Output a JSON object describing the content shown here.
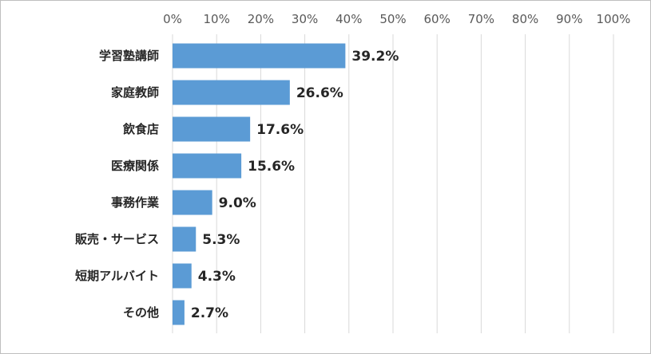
{
  "chart_data": {
    "type": "bar",
    "orientation": "horizontal",
    "categories": [
      "学習塾講師",
      "家庭教師",
      "飲食店",
      "医療関係",
      "事務作業",
      "販売・サービス",
      "短期アルバイト",
      "その他"
    ],
    "values": [
      39.2,
      26.6,
      17.6,
      15.6,
      9.0,
      5.3,
      4.3,
      2.7
    ],
    "value_labels": [
      "39.2%",
      "26.6%",
      "17.6%",
      "15.6%",
      "9.0%",
      "5.3%",
      "4.3%",
      "2.7%"
    ],
    "xlim": [
      0,
      100
    ],
    "xticks": [
      "0%",
      "10%",
      "20%",
      "30%",
      "40%",
      "50%",
      "60%",
      "70%",
      "80%",
      "90%",
      "100%"
    ],
    "x_axis_position": "top",
    "grid": true,
    "bar_color": "#5b9bd5",
    "grid_color": "#d9d9d9",
    "title": "",
    "xlabel": "",
    "ylabel": ""
  }
}
